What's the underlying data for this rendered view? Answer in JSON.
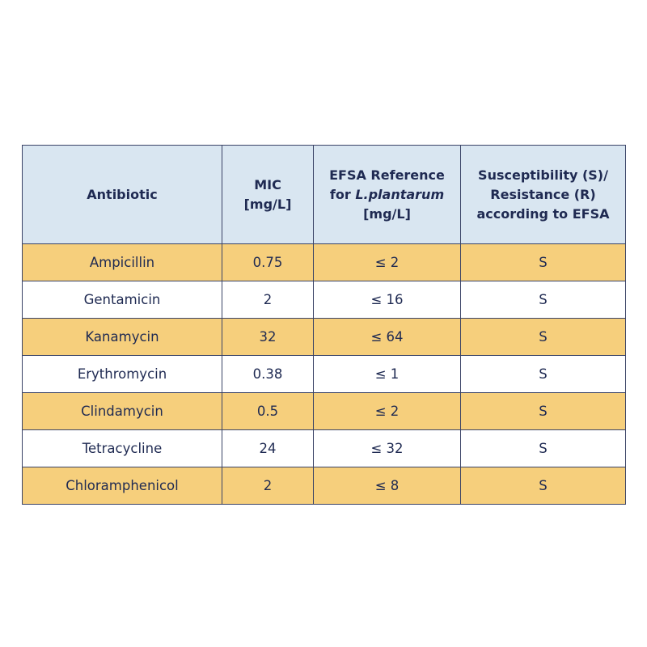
{
  "table": {
    "headers": {
      "antibiotic": "Antibiotic",
      "mic_line1": "MIC",
      "mic_line2": "[mg/L]",
      "efsa_line1": "EFSA Reference",
      "efsa_line2_prefix": "for ",
      "efsa_line2_species": "L.plantarum",
      "efsa_line3": "[mg/L]",
      "sr_line1": "Susceptibility (S)/",
      "sr_line2": "Resistance (R)",
      "sr_line3": "according to EFSA"
    },
    "rows": [
      {
        "antibiotic": "Ampicillin",
        "mic": "0.75",
        "efsa": "≤ 2",
        "sr": "S"
      },
      {
        "antibiotic": "Gentamicin",
        "mic": "2",
        "efsa": "≤ 16",
        "sr": "S"
      },
      {
        "antibiotic": "Kanamycin",
        "mic": "32",
        "efsa": "≤ 64",
        "sr": "S"
      },
      {
        "antibiotic": "Erythromycin",
        "mic": "0.38",
        "efsa": "≤ 1",
        "sr": "S"
      },
      {
        "antibiotic": "Clindamycin",
        "mic": "0.5",
        "efsa": "≤ 2",
        "sr": "S"
      },
      {
        "antibiotic": "Tetracycline",
        "mic": "24",
        "efsa": "≤ 32",
        "sr": "S"
      },
      {
        "antibiotic": "Chloramphenicol",
        "mic": "2",
        "efsa": "≤ 8",
        "sr": "S"
      }
    ]
  },
  "colors": {
    "header_bg": "#d9e6f1",
    "shaded_row_bg": "#f6cf7c",
    "plain_row_bg": "#ffffff",
    "text": "#1f2a52",
    "border": "#3a4366"
  }
}
